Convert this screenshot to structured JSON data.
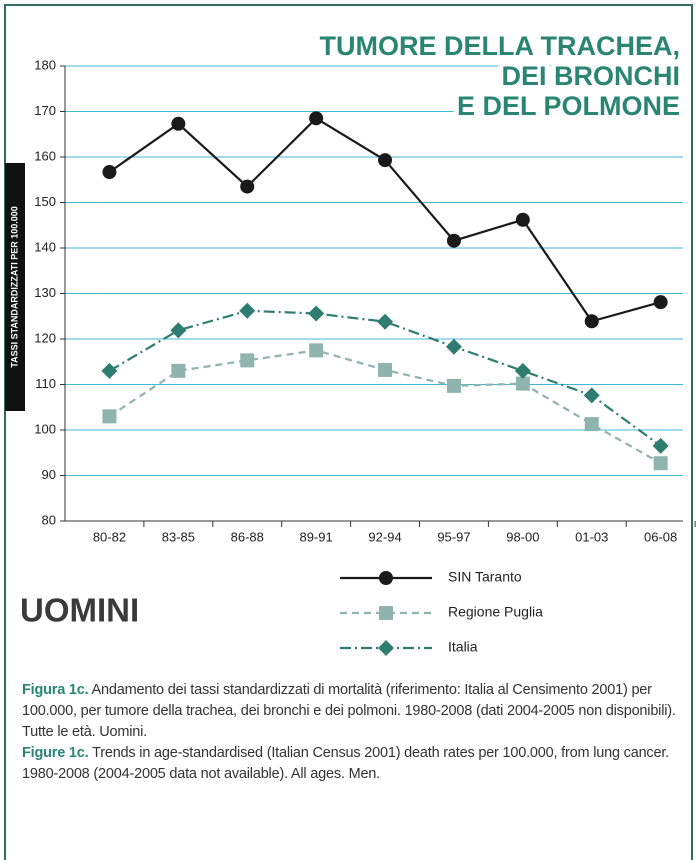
{
  "chart_data": {
    "type": "line",
    "title_lines": [
      "TUMORE DELLA TRACHEA,",
      "DEI BRONCHI",
      "E DEL POLMONE"
    ],
    "y_label": "TASSI STANDARDIZZATI PER 100.000",
    "subject": "UOMINI",
    "categories": [
      "80-82",
      "83-85",
      "86-88",
      "89-91",
      "92-94",
      "95-97",
      "98-00",
      "01-03",
      "06-08"
    ],
    "series": [
      {
        "name": "SIN Taranto",
        "color": "#1a1a1a",
        "dash": "solid",
        "marker": "circle",
        "values": [
          156.7,
          167.3,
          153.5,
          168.5,
          159.3,
          141.6,
          146.2,
          123.9,
          128.1
        ]
      },
      {
        "name": "Regione Puglia",
        "color": "#8fb3ae",
        "dash": "dashed",
        "marker": "square",
        "values": [
          103,
          113,
          115.3,
          117.5,
          113.2,
          109.7,
          110.2,
          101.3,
          92.7
        ]
      },
      {
        "name": "Italia",
        "color": "#2e7d70",
        "dash": "dashdot",
        "marker": "diamond",
        "values": [
          113,
          121.9,
          126.2,
          125.6,
          123.8,
          118.3,
          113,
          107.6,
          96.5
        ]
      }
    ],
    "ylim": [
      80,
      180
    ],
    "yticks": [
      80,
      90,
      100,
      110,
      120,
      130,
      140,
      150,
      160,
      170,
      180
    ],
    "grid": true,
    "grid_color": "#3fb8d8",
    "title_color": "#2a8572",
    "caption": [
      {
        "label": "Figura 1c.",
        "text": "Andamento dei tassi standardizzati di mortalità (riferimento: Italia al Censimento 2001) per 100.000, per tumore della trachea, dei bronchi e dei polmoni. 1980-2008 (dati 2004-2005 non disponibili). Tutte le età. Uomini."
      },
      {
        "label": "Figure 1c.",
        "text": "Trends in age-standardised (Italian Census 2001) death rates per 100.000, from lung cancer. 1980-2008 (2004-2005 data not available). All ages. Men."
      }
    ]
  }
}
